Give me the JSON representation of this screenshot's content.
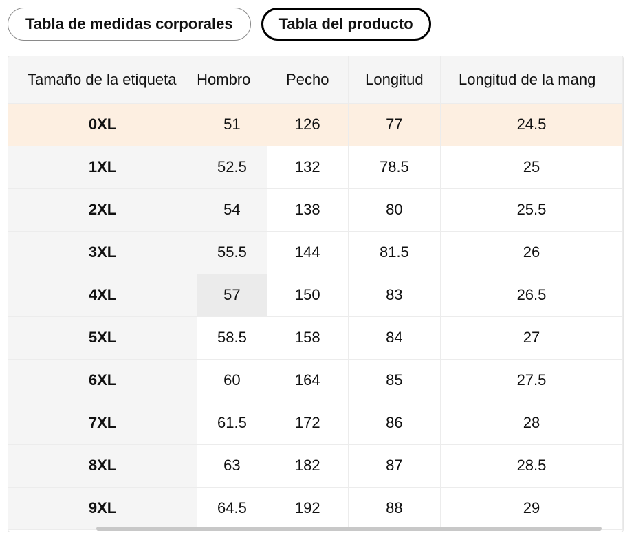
{
  "tabs": [
    {
      "label": "Tabla de medidas corporales",
      "active": false
    },
    {
      "label": "Tabla del producto",
      "active": true
    }
  ],
  "table": {
    "headers": [
      "Tamaño de la etiqueta",
      "Hombro",
      "Pecho",
      "Longitud",
      "Longitud de la mang"
    ],
    "rows": [
      [
        "0XL",
        "51",
        "126",
        "77",
        "24.5"
      ],
      [
        "1XL",
        "52.5",
        "132",
        "78.5",
        "25"
      ],
      [
        "2XL",
        "54",
        "138",
        "80",
        "25.5"
      ],
      [
        "3XL",
        "55.5",
        "144",
        "81.5",
        "26"
      ],
      [
        "4XL",
        "57",
        "150",
        "83",
        "26.5"
      ],
      [
        "5XL",
        "58.5",
        "158",
        "84",
        "27"
      ],
      [
        "6XL",
        "60",
        "164",
        "85",
        "27.5"
      ],
      [
        "7XL",
        "61.5",
        "172",
        "86",
        "28"
      ],
      [
        "8XL",
        "63",
        "182",
        "87",
        "28.5"
      ],
      [
        "9XL",
        "64.5",
        "192",
        "88",
        "29"
      ]
    ]
  },
  "colors": {
    "highlight_row": "#fdefe1",
    "header_bg": "#f5f5f5",
    "hovered_cell": "#ebebeb"
  }
}
